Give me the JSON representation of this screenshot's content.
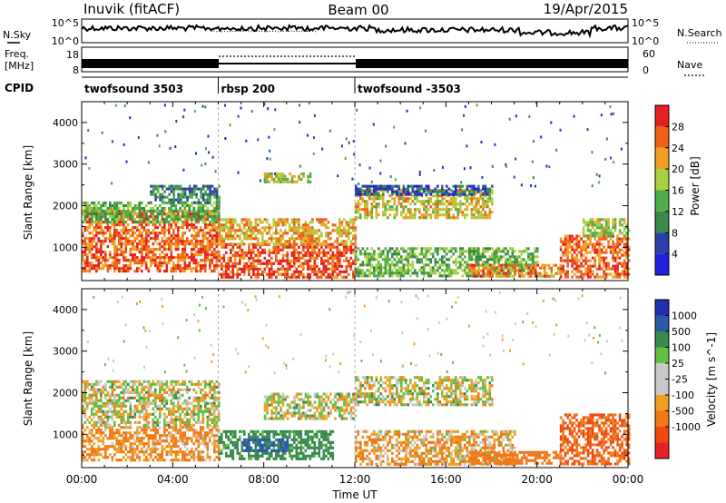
{
  "header": {
    "radar": "Inuvik (fitACF)",
    "beam": "Beam 00",
    "date": "19/Apr/2015"
  },
  "noise_panel": {
    "left_label": "N.Sky",
    "right_label": "N.Search",
    "left_ticks": [
      "10^5",
      "10^0"
    ],
    "right_ticks": [
      "10^5",
      "10^0"
    ]
  },
  "freq_panel": {
    "left_label_1": "Freq.",
    "left_label_2": "[MHz]",
    "right_label": "Nave",
    "left_ticks": [
      "18",
      "8"
    ],
    "right_ticks": [
      "60",
      "0"
    ]
  },
  "cpid_panel": {
    "label": "CPID",
    "segments": [
      {
        "start_hr": 0,
        "end_hr": 6,
        "text": "twofsound 3503"
      },
      {
        "start_hr": 6,
        "end_hr": 12,
        "text": "rbsp 200"
      },
      {
        "start_hr": 12,
        "end_hr": 24,
        "text": "twofsound -3503"
      }
    ]
  },
  "power_colorbar": {
    "title": "Power [dB]",
    "colors": [
      "#2020e0",
      "#2c3ea8",
      "#3a8a4a",
      "#4fae48",
      "#a8d040",
      "#f0a020",
      "#f06018",
      "#e82020"
    ],
    "ticks": [
      "4",
      "8",
      "12",
      "16",
      "20",
      "24",
      "28"
    ]
  },
  "velocity_colorbar": {
    "title": "Velocity [m s^-1]",
    "colors": [
      "#2030b0",
      "#2c5aa8",
      "#3a8a50",
      "#60c040",
      "#c8c8c8",
      "#c8c8c8",
      "#f0a020",
      "#f07818",
      "#f04810",
      "#e82020"
    ],
    "ticks": [
      "1000",
      "500",
      "100",
      "25",
      "-25",
      "-100",
      "-500",
      "-1000"
    ]
  },
  "chart_data": [
    {
      "type": "heatmap",
      "panel": "power",
      "xlabel": "",
      "ylabel": "Slant Range [km]",
      "xlim": [
        0,
        24
      ],
      "ylim": [
        200,
        4500
      ],
      "yticks": [
        1000,
        2000,
        3000,
        4000
      ],
      "x_tick_labels": [
        "00:00",
        "04:00",
        "08:00",
        "12:00",
        "16:00",
        "20:00",
        "00:00"
      ],
      "bands": [
        {
          "t0": 0,
          "t1": 6,
          "r0": 400,
          "r1": 1900,
          "value": 26
        },
        {
          "t0": 0,
          "t1": 6,
          "r0": 1600,
          "r1": 2100,
          "value": 14
        },
        {
          "t0": 3,
          "t1": 6,
          "r0": 2100,
          "r1": 2500,
          "value": 10
        },
        {
          "t0": 6,
          "t1": 12,
          "r0": 300,
          "r1": 1100,
          "value": 28
        },
        {
          "t0": 6,
          "t1": 12,
          "r0": 1100,
          "r1": 1700,
          "value": 22
        },
        {
          "t0": 8,
          "t1": 10,
          "r0": 2600,
          "r1": 2800,
          "value": 18
        },
        {
          "t0": 12,
          "t1": 18,
          "r0": 1700,
          "r1": 2400,
          "value": 20
        },
        {
          "t0": 12,
          "t1": 18,
          "r0": 2300,
          "r1": 2500,
          "value": 6
        },
        {
          "t0": 12,
          "t1": 20,
          "r0": 300,
          "r1": 1000,
          "value": 14
        },
        {
          "t0": 17,
          "t1": 21,
          "r0": 300,
          "r1": 600,
          "value": 24
        },
        {
          "t0": 21,
          "t1": 24,
          "r0": 300,
          "r1": 1300,
          "value": 26
        },
        {
          "t0": 22,
          "t1": 24,
          "r0": 1300,
          "r1": 1700,
          "value": 18
        }
      ]
    },
    {
      "type": "heatmap",
      "panel": "velocity",
      "xlabel": "Time UT",
      "ylabel": "Slant Range [km]",
      "xlim": [
        0,
        24
      ],
      "ylim": [
        200,
        4500
      ],
      "yticks": [
        1000,
        2000,
        3000,
        4000
      ],
      "x_tick_labels": [
        "00:00",
        "04:00",
        "08:00",
        "12:00",
        "16:00",
        "20:00",
        "00:00"
      ],
      "bands": [
        {
          "t0": 0,
          "t1": 6,
          "r0": 400,
          "r1": 1200,
          "value": -120
        },
        {
          "t0": 0,
          "t1": 6,
          "r0": 1200,
          "r1": 2300,
          "value": 0
        },
        {
          "t0": 6,
          "t1": 11,
          "r0": 400,
          "r1": 1100,
          "value": 200
        },
        {
          "t0": 7,
          "t1": 9,
          "r0": 600,
          "r1": 900,
          "value": 700
        },
        {
          "t0": 8,
          "t1": 12,
          "r0": 1400,
          "r1": 2000,
          "value": 0
        },
        {
          "t0": 12,
          "t1": 18,
          "r0": 1700,
          "r1": 2400,
          "value": 0
        },
        {
          "t0": 12,
          "t1": 19,
          "r0": 300,
          "r1": 1100,
          "value": -80
        },
        {
          "t0": 17,
          "t1": 21,
          "r0": 300,
          "r1": 600,
          "value": -300
        },
        {
          "t0": 21,
          "t1": 24,
          "r0": 300,
          "r1": 1500,
          "value": -500
        }
      ]
    }
  ]
}
